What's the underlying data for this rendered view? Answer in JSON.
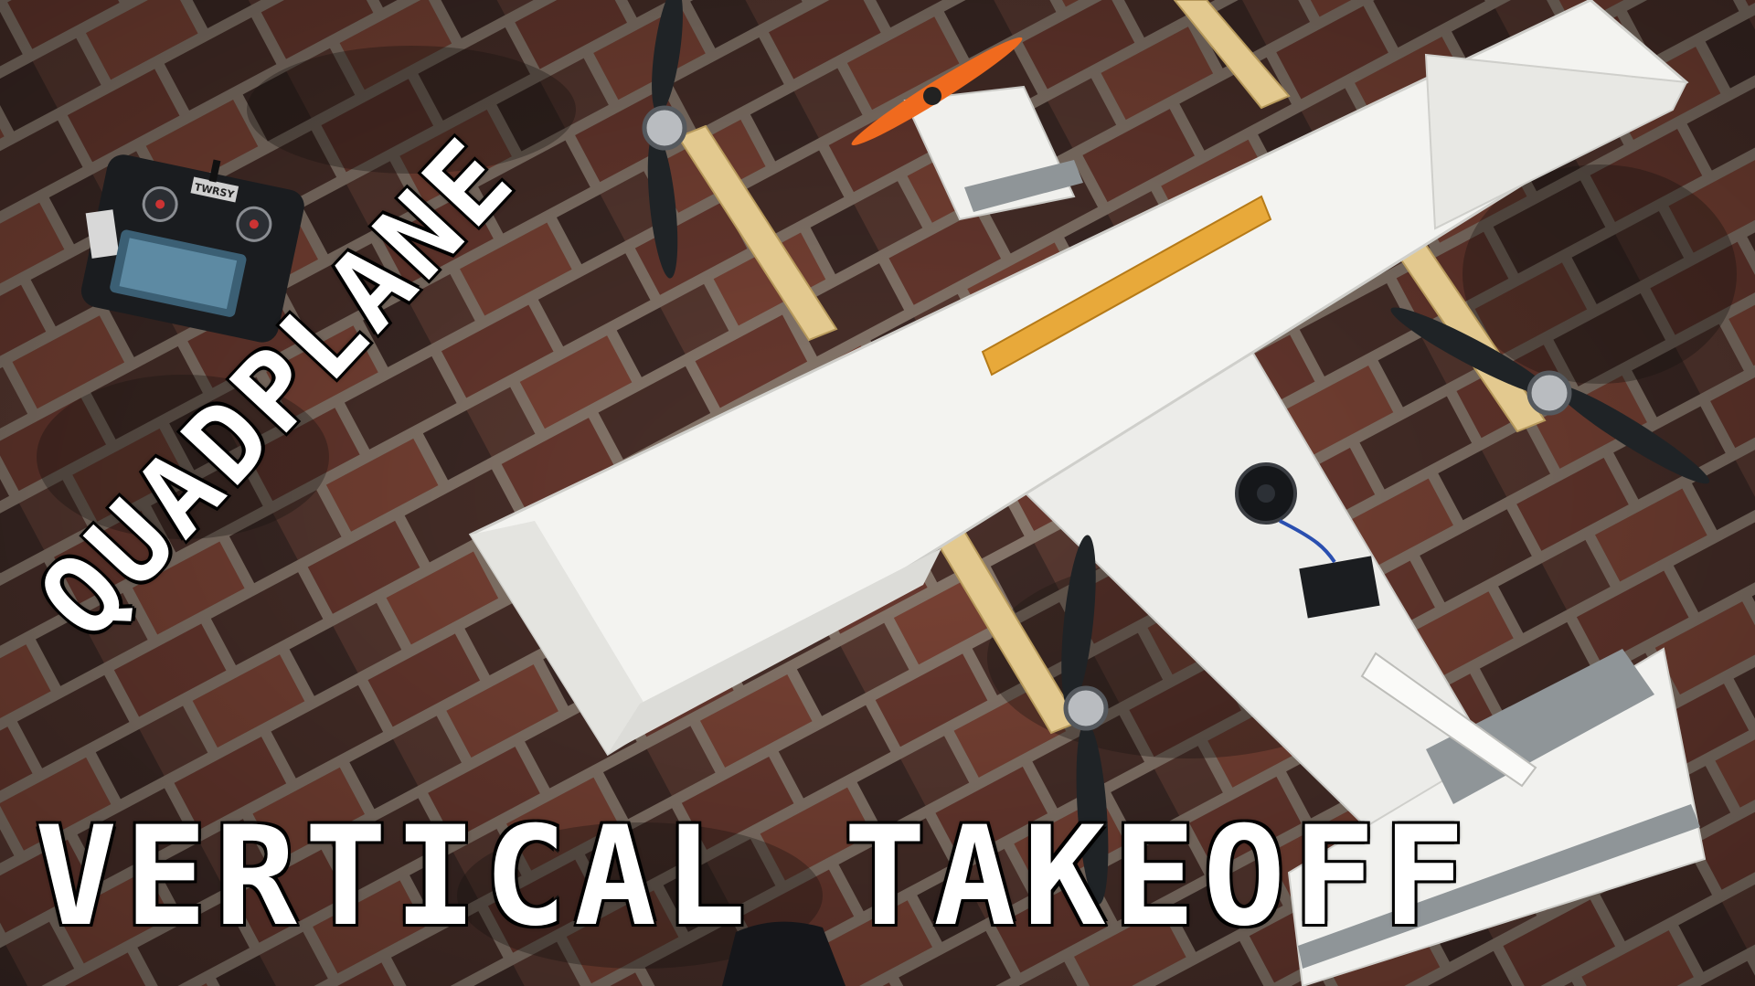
{
  "captions": {
    "top": "QUADPLANE",
    "bottom": "VERTICAL TAKEOFF"
  },
  "transmitter": {
    "brand": "TWRSY"
  },
  "colors": {
    "brick_dark": "#3b2722",
    "brick_red": "#7a3f33",
    "mortar": "#8a7a6e",
    "foam": "#f2f2ef",
    "tape": "#8f9598",
    "wood": "#e3c98f",
    "propeller_orange": "#f06a1e",
    "propeller_black": "#1f2326",
    "ruler": "#e8a93a"
  }
}
